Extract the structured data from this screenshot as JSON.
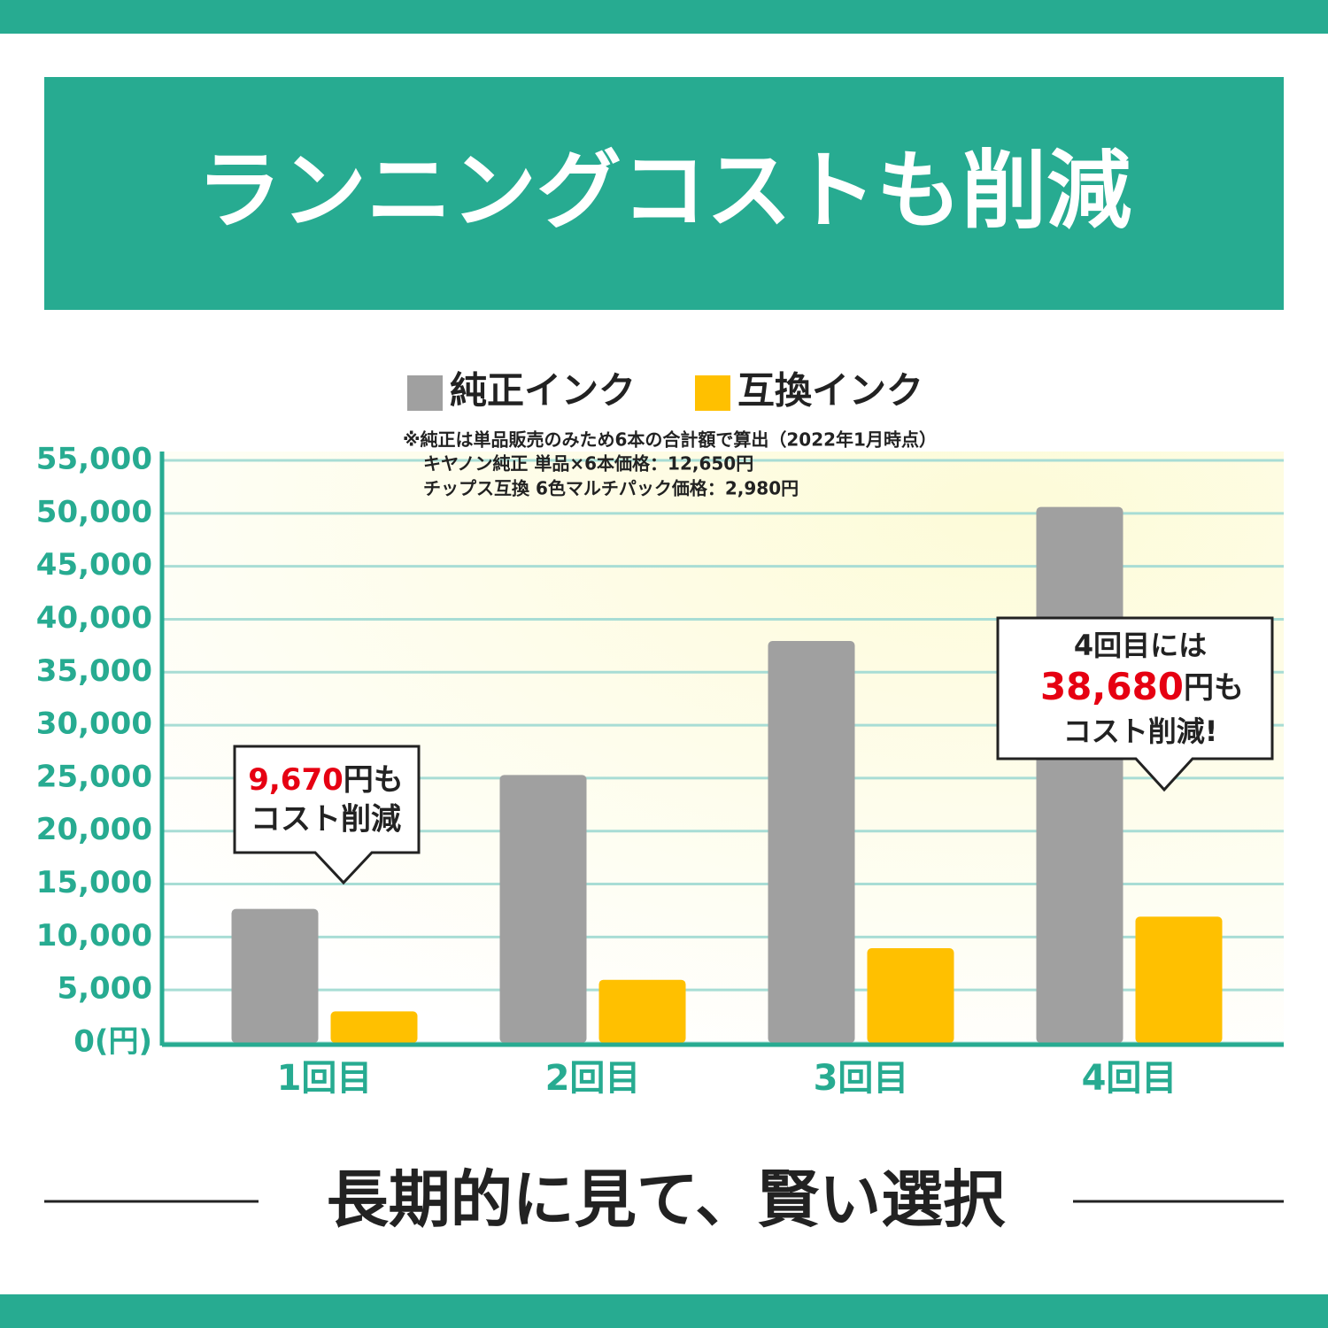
{
  "chart_data": {
    "type": "bar",
    "title": "ランニングコストも削減",
    "notes": [
      "※純正は単品販売のみため6本の合計額で算出（2022年1月時点）",
      "キヤノン純正 単品×6本価格：12,650円",
      "チップス互換 6色マルチパック価格：2,980円"
    ],
    "categories": [
      "1回目",
      "2回目",
      "3回目",
      "4回目"
    ],
    "series": [
      {
        "name": "純正インク",
        "color": "#a0a0a0",
        "values": [
          12650,
          25300,
          37950,
          50600
        ]
      },
      {
        "name": "互換インク",
        "color": "#ffc000",
        "values": [
          2980,
          5960,
          8940,
          11920
        ]
      }
    ],
    "ylim": [
      0,
      55000
    ],
    "yticks": [
      {
        "value": 0,
        "label": "0(円)"
      },
      {
        "value": 5000,
        "label": "5,000"
      },
      {
        "value": 10000,
        "label": "10,000"
      },
      {
        "value": 15000,
        "label": "15,000"
      },
      {
        "value": 20000,
        "label": "20,000"
      },
      {
        "value": 25000,
        "label": "25,000"
      },
      {
        "value": 30000,
        "label": "30,000"
      },
      {
        "value": 35000,
        "label": "35,000"
      },
      {
        "value": 40000,
        "label": "40,000"
      },
      {
        "value": 45000,
        "label": "45,000"
      },
      {
        "value": 50000,
        "label": "50,000"
      },
      {
        "value": 55000,
        "label": "55,000"
      }
    ],
    "grid": true,
    "annotations": [
      {
        "highlight": "9,670",
        "after": "円も",
        "line2": "コスト削減"
      },
      {
        "line1": "4回目には",
        "highlight": "38,680",
        "after": "円も",
        "line2": "コスト削減!"
      }
    ],
    "footer": "長期的に見て、賢い選択"
  }
}
